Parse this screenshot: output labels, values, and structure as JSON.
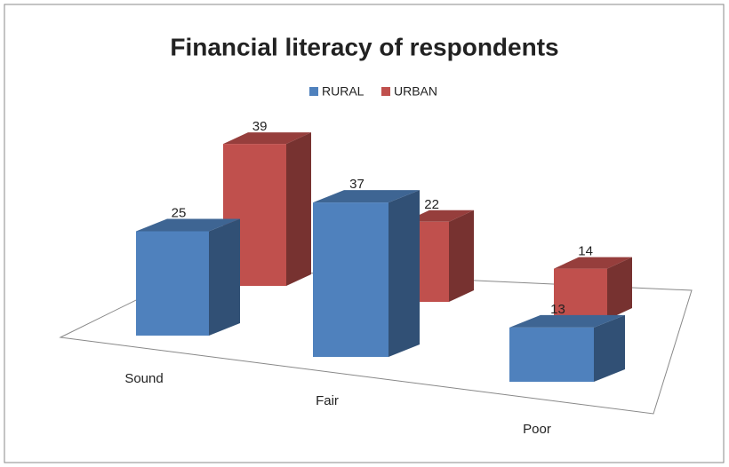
{
  "chart_data": {
    "type": "bar3d",
    "title": "Financial literacy of respondents",
    "categories": [
      "Sound",
      "Fair",
      "Poor"
    ],
    "series": [
      {
        "name": "RURAL",
        "color": "#4f81bd",
        "values": [
          25,
          37,
          13
        ]
      },
      {
        "name": "URBAN",
        "color": "#c0504d",
        "values": [
          39,
          22,
          14
        ]
      }
    ],
    "legend": "top"
  }
}
